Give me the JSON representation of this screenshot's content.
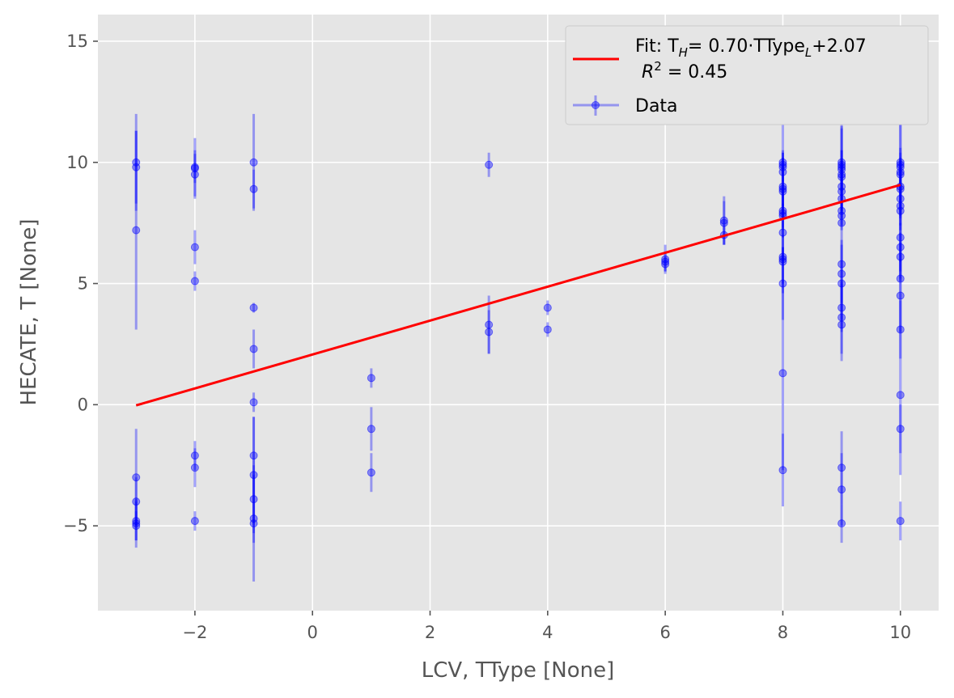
{
  "chart_data": {
    "type": "scatter",
    "xlabel": "LCV, TType [None]",
    "ylabel": "HECATE, T [None]",
    "xlim": [
      -3.65,
      10.65
    ],
    "ylim": [
      -8.5,
      16.1
    ],
    "xticks": [
      -2,
      0,
      2,
      4,
      6,
      8,
      10
    ],
    "yticks": [
      -5,
      0,
      5,
      10,
      15
    ],
    "xtick_labels": [
      "−2",
      "0",
      "2",
      "4",
      "6",
      "8",
      "10"
    ],
    "ytick_labels": [
      "−5",
      "0",
      "5",
      "10",
      "15"
    ],
    "grid": true,
    "style": "ggplot",
    "legend_placement": "upper right",
    "legend": {
      "fit_label_main": "Fit: T",
      "fit_label_sub": "H",
      "fit_label_rest": "= 0.70·TType",
      "fit_label_sub2": "L",
      "fit_label_end": "+2.07",
      "r2_label_pre": "R",
      "r2_label_sup": "2",
      "r2_label_end": " =  0.45",
      "data_label": "Data"
    },
    "colors": {
      "fit": "#ff0000",
      "data": "#0000ff",
      "panel": "#e5e5e5",
      "grid": "#ffffff"
    },
    "fit": {
      "slope": 0.7,
      "intercept": 2.07,
      "x_range": [
        -3,
        10
      ],
      "r2": 0.45
    },
    "series": [
      {
        "name": "Data",
        "points": [
          {
            "x": -3,
            "y": 10.0,
            "yerr": 2.0
          },
          {
            "x": -3,
            "y": 9.8,
            "yerr": 1.5
          },
          {
            "x": -3,
            "y": 7.2,
            "yerr": 4.1
          },
          {
            "x": -3,
            "y": -3.0,
            "yerr": 2.0
          },
          {
            "x": -3,
            "y": -4.0,
            "yerr": 1.0
          },
          {
            "x": -3,
            "y": -4.8,
            "yerr": 0.8
          },
          {
            "x": -3,
            "y": -4.9,
            "yerr": 1.0
          },
          {
            "x": -3,
            "y": -5.0,
            "yerr": 0.6
          },
          {
            "x": -2,
            "y": 9.8,
            "yerr": 1.2
          },
          {
            "x": -2,
            "y": 9.5,
            "yerr": 1.0
          },
          {
            "x": -2,
            "y": 9.75,
            "yerr": 0.6
          },
          {
            "x": -2,
            "y": 6.5,
            "yerr": 0.7
          },
          {
            "x": -2,
            "y": 5.1,
            "yerr": 0.4
          },
          {
            "x": -2,
            "y": -2.1,
            "yerr": 0.6
          },
          {
            "x": -2,
            "y": -2.6,
            "yerr": 0.8
          },
          {
            "x": -2,
            "y": -4.8,
            "yerr": 0.4
          },
          {
            "x": -1,
            "y": 10.0,
            "yerr": 2.0
          },
          {
            "x": -1,
            "y": 8.9,
            "yerr": 0.8
          },
          {
            "x": -1,
            "y": 4.0,
            "yerr": 0.2
          },
          {
            "x": -1,
            "y": 2.3,
            "yerr": 0.8
          },
          {
            "x": -1,
            "y": 0.1,
            "yerr": 0.4
          },
          {
            "x": -1,
            "y": -2.1,
            "yerr": 1.6
          },
          {
            "x": -1,
            "y": -2.9,
            "yerr": 2.4
          },
          {
            "x": -1,
            "y": -3.9,
            "yerr": 1.0
          },
          {
            "x": -1,
            "y": -4.7,
            "yerr": 1.0
          },
          {
            "x": -1,
            "y": -4.9,
            "yerr": 2.4
          },
          {
            "x": 1,
            "y": 1.1,
            "yerr": 0.4
          },
          {
            "x": 1,
            "y": -1.0,
            "yerr": 0.9
          },
          {
            "x": 1,
            "y": -2.8,
            "yerr": 0.8
          },
          {
            "x": 3,
            "y": 9.9,
            "yerr": 0.5
          },
          {
            "x": 3,
            "y": 3.3,
            "yerr": 1.2
          },
          {
            "x": 3,
            "y": 3.0,
            "yerr": 0.9
          },
          {
            "x": 4,
            "y": 4.0,
            "yerr": 0.3
          },
          {
            "x": 4,
            "y": 3.1,
            "yerr": 0.3
          },
          {
            "x": 6,
            "y": 6.0,
            "yerr": 0.6
          },
          {
            "x": 6,
            "y": 5.9,
            "yerr": 0.4
          },
          {
            "x": 6,
            "y": 5.8,
            "yerr": 0.3
          },
          {
            "x": 7,
            "y": 7.6,
            "yerr": 1.0
          },
          {
            "x": 7,
            "y": 7.5,
            "yerr": 0.9
          },
          {
            "x": 7,
            "y": 7.0,
            "yerr": 0.4
          },
          {
            "x": 8,
            "y": 10.0,
            "yerr": 1.8
          },
          {
            "x": 8,
            "y": 9.9,
            "yerr": 0.6
          },
          {
            "x": 8,
            "y": 9.8,
            "yerr": 0.6
          },
          {
            "x": 8,
            "y": 9.6,
            "yerr": 0.8
          },
          {
            "x": 8,
            "y": 9.0,
            "yerr": 1.2
          },
          {
            "x": 8,
            "y": 8.9,
            "yerr": 1.0
          },
          {
            "x": 8,
            "y": 8.8,
            "yerr": 0.5
          },
          {
            "x": 8,
            "y": 8.0,
            "yerr": 0.8
          },
          {
            "x": 8,
            "y": 7.9,
            "yerr": 1.0
          },
          {
            "x": 8,
            "y": 7.8,
            "yerr": 0.5
          },
          {
            "x": 8,
            "y": 7.1,
            "yerr": 1.2
          },
          {
            "x": 8,
            "y": 6.1,
            "yerr": 1.5
          },
          {
            "x": 8,
            "y": 6.0,
            "yerr": 1.0
          },
          {
            "x": 8,
            "y": 5.9,
            "yerr": 0.6
          },
          {
            "x": 8,
            "y": 5.0,
            "yerr": 1.5
          },
          {
            "x": 8,
            "y": 1.3,
            "yerr": 4.0
          },
          {
            "x": 8,
            "y": -2.7,
            "yerr": 1.5
          },
          {
            "x": 9,
            "y": 10.0,
            "yerr": 2.1
          },
          {
            "x": 9,
            "y": 9.9,
            "yerr": 1.5
          },
          {
            "x": 9,
            "y": 9.8,
            "yerr": 1.7
          },
          {
            "x": 9,
            "y": 9.7,
            "yerr": 0.8
          },
          {
            "x": 9,
            "y": 9.5,
            "yerr": 1.0
          },
          {
            "x": 9,
            "y": 9.4,
            "yerr": 0.6
          },
          {
            "x": 9,
            "y": 9.0,
            "yerr": 1.0
          },
          {
            "x": 9,
            "y": 8.8,
            "yerr": 0.8
          },
          {
            "x": 9,
            "y": 8.5,
            "yerr": 0.8
          },
          {
            "x": 9,
            "y": 8.0,
            "yerr": 0.6
          },
          {
            "x": 9,
            "y": 7.8,
            "yerr": 0.6
          },
          {
            "x": 9,
            "y": 7.5,
            "yerr": 1.0
          },
          {
            "x": 9,
            "y": 5.8,
            "yerr": 1.0
          },
          {
            "x": 9,
            "y": 5.4,
            "yerr": 1.2
          },
          {
            "x": 9,
            "y": 5.0,
            "yerr": 1.5
          },
          {
            "x": 9,
            "y": 4.0,
            "yerr": 1.0
          },
          {
            "x": 9,
            "y": 3.6,
            "yerr": 1.5
          },
          {
            "x": 9,
            "y": 3.3,
            "yerr": 1.5
          },
          {
            "x": 9,
            "y": -2.6,
            "yerr": 1.5
          },
          {
            "x": 9,
            "y": -3.5,
            "yerr": 1.5
          },
          {
            "x": 9,
            "y": -4.9,
            "yerr": 0.8
          },
          {
            "x": 10,
            "y": 10.0,
            "yerr": 4.8
          },
          {
            "x": 10,
            "y": 9.9,
            "yerr": 2.0
          },
          {
            "x": 10,
            "y": 9.8,
            "yerr": 0.8
          },
          {
            "x": 10,
            "y": 9.6,
            "yerr": 0.8
          },
          {
            "x": 10,
            "y": 9.5,
            "yerr": 0.6
          },
          {
            "x": 10,
            "y": 9.0,
            "yerr": 1.2
          },
          {
            "x": 10,
            "y": 8.9,
            "yerr": 0.8
          },
          {
            "x": 10,
            "y": 8.5,
            "yerr": 0.8
          },
          {
            "x": 10,
            "y": 8.2,
            "yerr": 0.8
          },
          {
            "x": 10,
            "y": 8.0,
            "yerr": 0.8
          },
          {
            "x": 10,
            "y": 6.9,
            "yerr": 1.0
          },
          {
            "x": 10,
            "y": 6.5,
            "yerr": 1.0
          },
          {
            "x": 10,
            "y": 6.1,
            "yerr": 1.0
          },
          {
            "x": 10,
            "y": 5.2,
            "yerr": 1.5
          },
          {
            "x": 10,
            "y": 4.5,
            "yerr": 1.5
          },
          {
            "x": 10,
            "y": 3.1,
            "yerr": 1.2
          },
          {
            "x": 10,
            "y": 0.4,
            "yerr": 3.3
          },
          {
            "x": 10,
            "y": -1.0,
            "yerr": 1.0
          },
          {
            "x": 10,
            "y": -4.8,
            "yerr": 0.8
          }
        ]
      }
    ]
  }
}
